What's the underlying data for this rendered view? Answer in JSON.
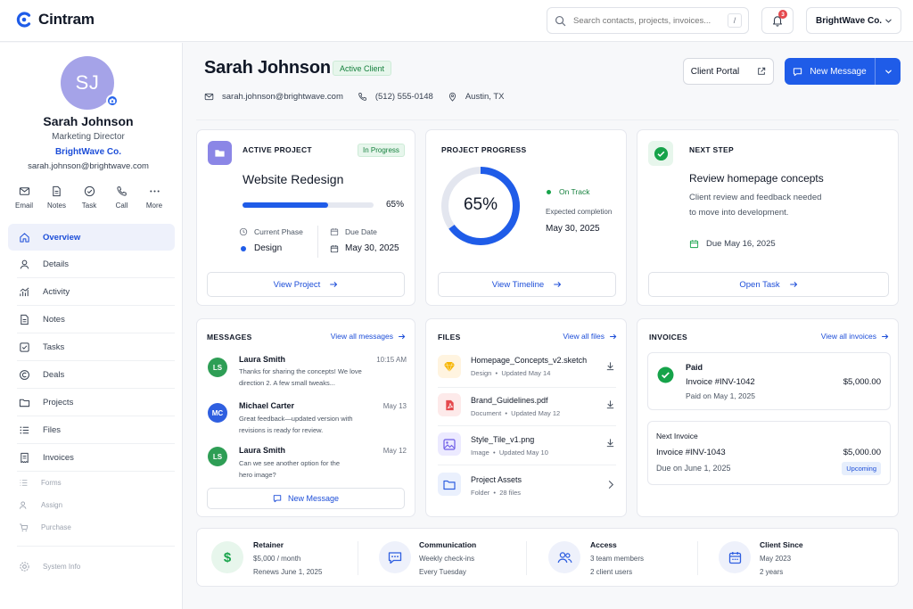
{
  "app": {
    "name": "Cintram",
    "account": "BrightWave Co.",
    "notifications": "3"
  },
  "search": {
    "placeholder": "Search contacts, projects, invoices...",
    "shortcut": "/"
  },
  "profile": {
    "initials": "SJ",
    "name": "Sarah Johnson",
    "role": "Marketing Director",
    "company": "BrightWave Co.",
    "email": "sarah.johnson@brightwave.com"
  },
  "quick_actions": [
    "Email",
    "Notes",
    "Task",
    "Call",
    "More"
  ],
  "nav": {
    "main": [
      "Overview",
      "Details",
      "Activity",
      "Notes",
      "Tasks",
      "Deals",
      "Projects",
      "Files",
      "Invoices"
    ],
    "minor": [
      "Forms",
      "Assign",
      "Purchase"
    ],
    "system": "System Info"
  },
  "header": {
    "name": "Sarah Johnson",
    "status": "Active Client",
    "email": "sarah.johnson@brightwave.com",
    "phone": "(512) 555-0148",
    "location": "Austin, TX",
    "portal_label": "Client Portal",
    "new_message_label": "New Message"
  },
  "active_project": {
    "label": "ACTIVE PROJECT",
    "status": "In Progress",
    "title": "Website Redesign",
    "progress_text": "65%",
    "progress": 0.65,
    "phase_label": "Current Phase",
    "phase": "Design",
    "due_label": "Due Date",
    "due": "May 30, 2025",
    "action": "View Project"
  },
  "project_progress": {
    "label": "PROJECT PROGRESS",
    "percent_text": "65%",
    "percent": 0.65,
    "status": "On Track",
    "completion_label": "Expected completion",
    "completion": "May 30, 2025",
    "action": "View Timeline"
  },
  "next_step": {
    "label": "NEXT STEP",
    "title": "Review homepage concepts",
    "desc_line1": "Client review and feedback needed",
    "desc_line2": "to move into development.",
    "due": "Due May 16, 2025",
    "action": "Open Task"
  },
  "messages": {
    "label": "MESSAGES",
    "link": "View all messages",
    "items": [
      {
        "initials": "LS",
        "sender": "Laura Smith",
        "time": "10:15 AM",
        "line1": "Thanks for sharing the concepts! We love",
        "line2": "direction 2. A few small tweaks..."
      },
      {
        "initials": "MC",
        "sender": "Michael Carter",
        "time": "May 13",
        "line1": "Great feedback—updated version with",
        "line2": "revisions is ready for review."
      },
      {
        "initials": "LS",
        "sender": "Laura Smith",
        "time": "May 12",
        "line1": "Can we see another option for the",
        "line2": "hero image?"
      }
    ],
    "action": "New Message"
  },
  "files": {
    "label": "FILES",
    "link": "View all files",
    "items": [
      {
        "name": "Homepage_Concepts_v2.sketch",
        "type": "Design",
        "meta": "Updated May 14"
      },
      {
        "name": "Brand_Guidelines.pdf",
        "type": "Document",
        "meta": "Updated May 12"
      },
      {
        "name": "Style_Tile_v1.png",
        "type": "Image",
        "meta": "Updated May 10"
      },
      {
        "name": "Project Assets",
        "type": "Folder",
        "meta": "28 files"
      }
    ]
  },
  "invoices": {
    "label": "INVOICES",
    "link": "View all invoices",
    "paid": {
      "status": "Paid",
      "number": "Invoice #INV-1042",
      "amount": "$5,000.00",
      "date": "Paid on May 1, 2025"
    },
    "next": {
      "label": "Next Invoice",
      "number": "Invoice #INV-1043",
      "amount": "$5,000.00",
      "date": "Due on June 1, 2025",
      "status": "Upcoming"
    }
  },
  "stats": [
    {
      "title": "Retainer",
      "line1": "$5,000 / month",
      "line2": "Renews June 1, 2025"
    },
    {
      "title": "Communication",
      "line1": "Weekly check-ins",
      "line2": "Every Tuesday"
    },
    {
      "title": "Access",
      "line1": "3 team members",
      "line2": "2 client users"
    },
    {
      "title": "Client Since",
      "line1": "May 2023",
      "line2": "2 years"
    }
  ],
  "colors": {
    "accent": "#1f5ce8",
    "success": "#16a34a",
    "avatar": "#a5a3e8"
  }
}
